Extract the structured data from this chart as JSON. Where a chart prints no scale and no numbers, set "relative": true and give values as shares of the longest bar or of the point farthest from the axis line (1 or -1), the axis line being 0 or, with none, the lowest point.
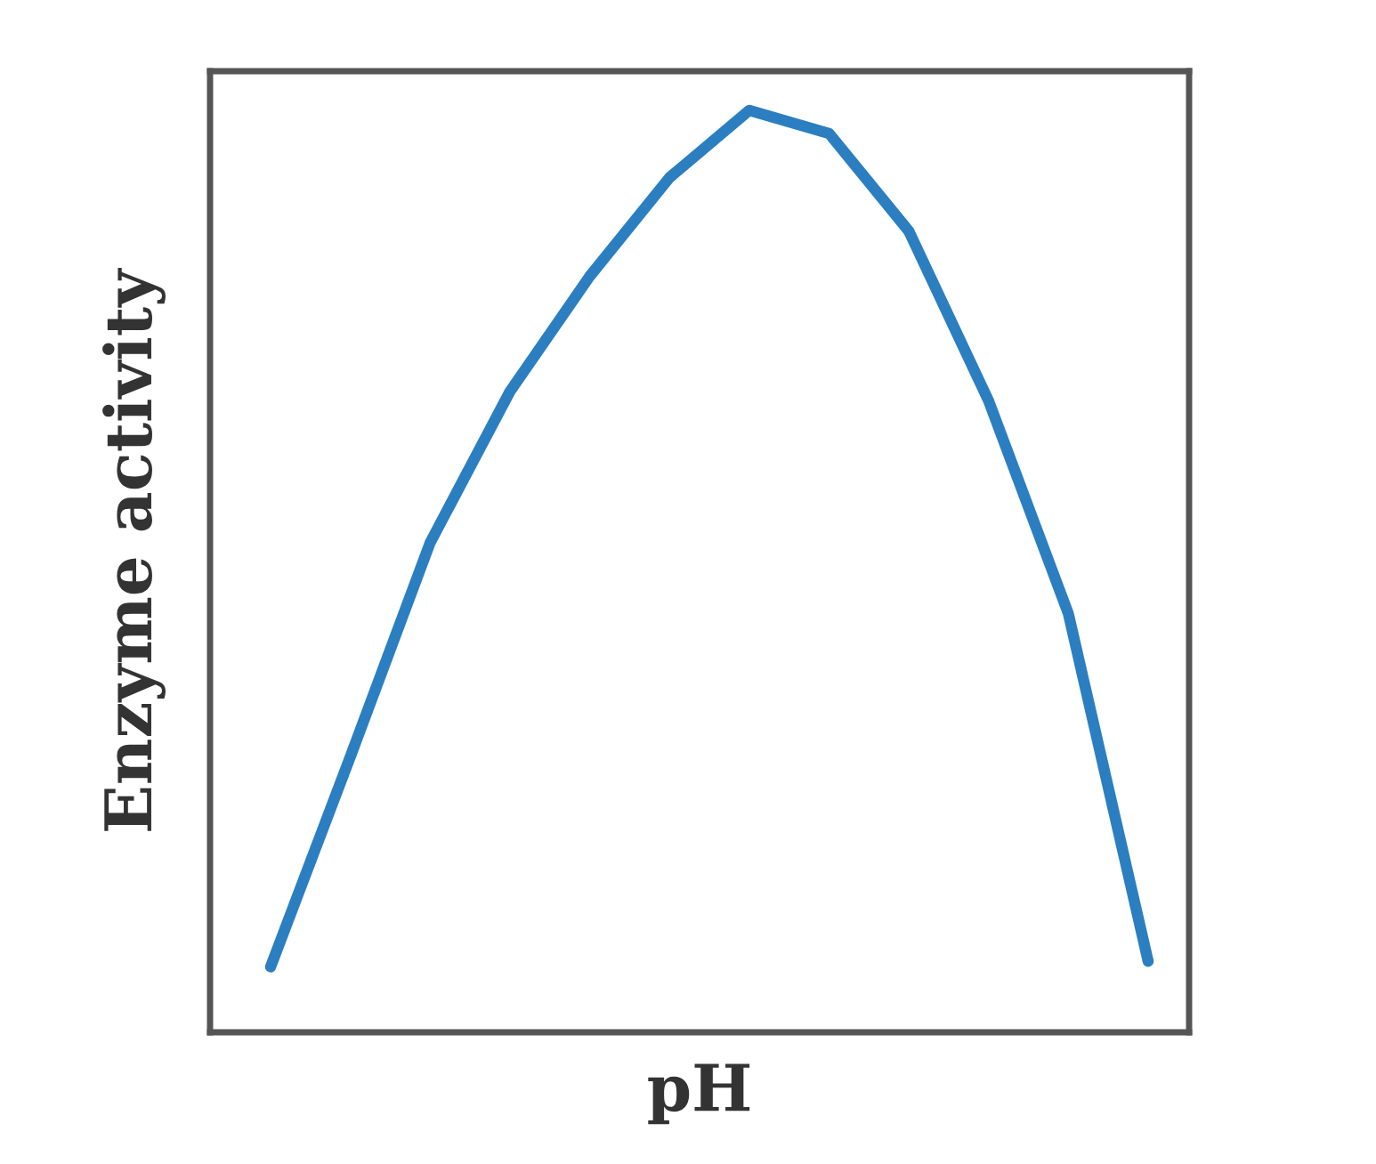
{
  "chart_data": {
    "type": "line",
    "relative": true,
    "xlabel": "pH",
    "ylabel": "Enzyme activity",
    "categories": [
      null,
      null,
      null,
      null,
      null,
      null,
      null,
      null,
      null,
      null,
      null,
      null
    ],
    "series": [
      {
        "color": "#2b7fc0",
        "values": [
          0.071,
          0.299,
          0.531,
          0.695,
          0.82,
          0.927,
          1.0,
          0.975,
          0.869,
          0.685,
          0.454,
          0.077
        ]
      }
    ],
    "tick_labels": false,
    "grid": false,
    "legend": false,
    "marker": "none",
    "line_style": "solid"
  }
}
